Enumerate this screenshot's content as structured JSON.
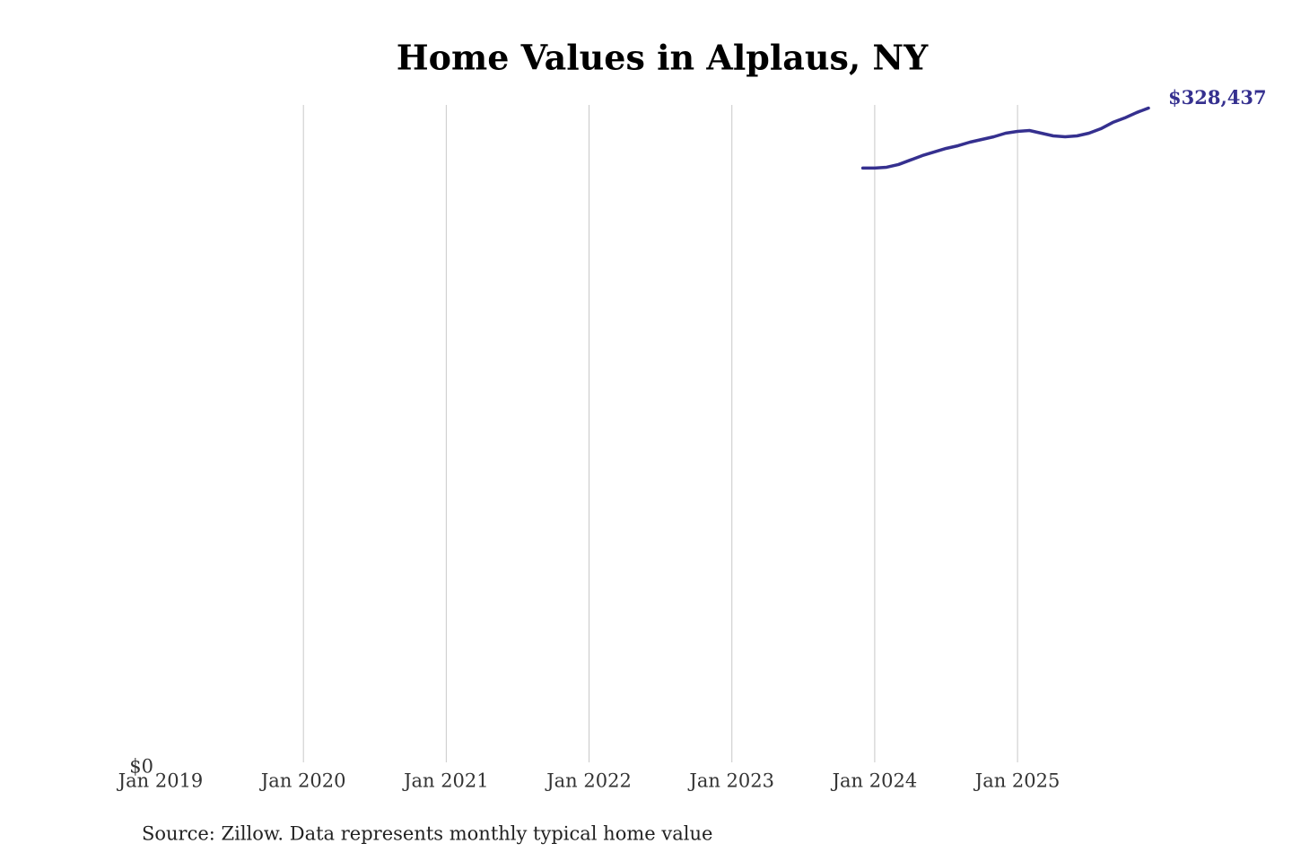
{
  "chart_data": {
    "type": "line",
    "title": "Home Values in Alplaus, NY",
    "source": "Source: Zillow. Data represents monthly typical home value",
    "x": [
      "2023-12",
      "2024-01",
      "2024-02",
      "2024-03",
      "2024-04",
      "2024-05",
      "2024-06",
      "2024-07",
      "2024-08",
      "2024-09",
      "2024-10",
      "2024-11",
      "2024-12",
      "2025-01",
      "2025-02",
      "2025-03",
      "2025-04",
      "2025-05",
      "2025-06",
      "2025-07",
      "2025-08",
      "2025-09",
      "2025-10",
      "2025-11",
      "2025-12"
    ],
    "series": [
      {
        "name": "Alplaus, NY",
        "color": "#35308f",
        "values": [
          298550,
          298550,
          298990,
          300330,
          302560,
          304790,
          306570,
          308350,
          309690,
          311470,
          312810,
          314150,
          315930,
          316820,
          317270,
          315930,
          314590,
          314150,
          314590,
          315930,
          318160,
          321280,
          323510,
          326180,
          328437
        ],
        "value_labels": [
          null,
          null,
          null,
          null,
          null,
          null,
          null,
          null,
          null,
          null,
          null,
          null,
          null,
          null,
          null,
          null,
          null,
          null,
          null,
          null,
          null,
          null,
          null,
          null,
          "$328,437"
        ]
      }
    ],
    "xlim": [
      "2019-01",
      "2025-12"
    ],
    "xticks": [
      {
        "value": "2019-01",
        "label": "Jan 2019"
      },
      {
        "value": "2020-01",
        "label": "Jan 2020"
      },
      {
        "value": "2021-01",
        "label": "Jan 2021"
      },
      {
        "value": "2022-01",
        "label": "Jan 2022"
      },
      {
        "value": "2023-01",
        "label": "Jan 2023"
      },
      {
        "value": "2024-01",
        "label": "Jan 2024"
      },
      {
        "value": "2025-01",
        "label": "Jan 2025"
      }
    ],
    "ylim": [
      0,
      330000
    ],
    "yticks": [
      {
        "value": 0,
        "label": "$0"
      }
    ],
    "grid": true
  }
}
